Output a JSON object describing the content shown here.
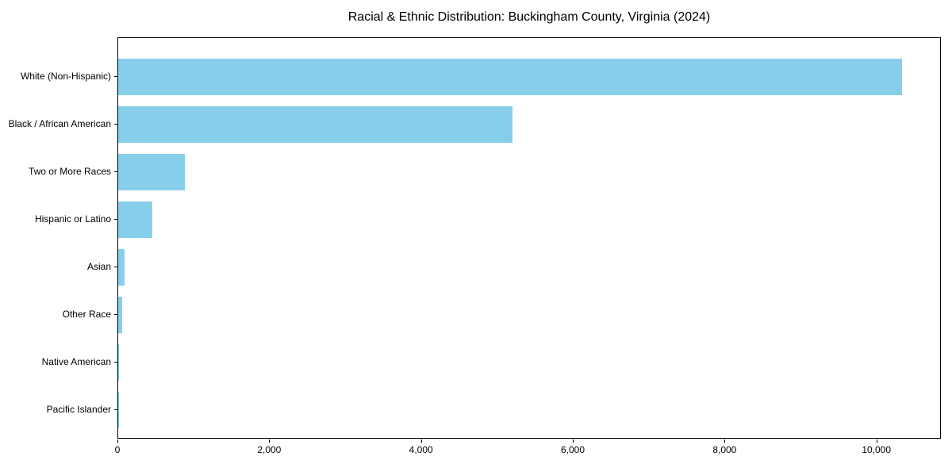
{
  "chart_data": {
    "type": "bar",
    "orientation": "horizontal",
    "title": "Racial & Ethnic Distribution: Buckingham County, Virginia (2024)",
    "categories": [
      "White (Non-Hispanic)",
      "Black / African American",
      "Two or More Races",
      "Hispanic or Latino",
      "Asian",
      "Other Race",
      "Native American",
      "Pacific Islander"
    ],
    "values": [
      10330,
      5190,
      875,
      450,
      80,
      55,
      12,
      2
    ],
    "xlabel": "",
    "ylabel": "",
    "xlim": [
      0,
      10850
    ],
    "xticks": {
      "values": [
        0,
        2000,
        4000,
        6000,
        8000,
        10000
      ],
      "labels": [
        "0",
        "2,000",
        "4,000",
        "6,000",
        "8,000",
        "10,000"
      ]
    },
    "grid": false,
    "legend": null,
    "bar_color": "#87CEEB",
    "axis_color": "#000000",
    "text_color": "#000000",
    "background_color": "#ffffff"
  }
}
